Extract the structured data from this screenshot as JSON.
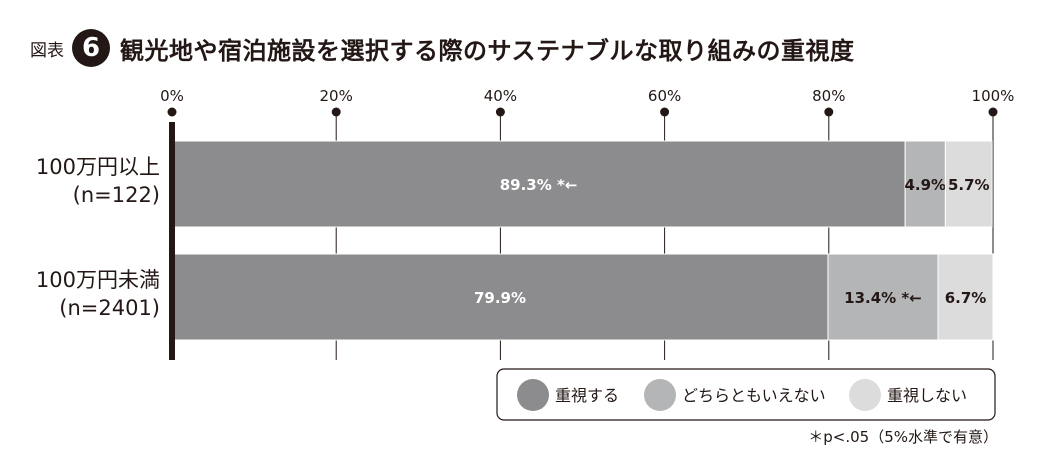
{
  "header": {
    "figure_label": "図表",
    "figure_number": "6",
    "title": "観光地や宿泊施設を選択する際のサステナブルな取り組みの重視度"
  },
  "chart_data": {
    "type": "bar",
    "orientation": "horizontal",
    "stacked": true,
    "xlim": [
      0,
      100
    ],
    "x_ticks": [
      "0%",
      "20%",
      "40%",
      "60%",
      "80%",
      "100%"
    ],
    "categories": [
      [
        "100万円以上",
        "(n=122)"
      ],
      [
        "100万円未満",
        "(n=2401)"
      ]
    ],
    "series": [
      {
        "name": "重視する",
        "color": "#8c8c8e",
        "values": [
          89.3,
          79.9
        ],
        "labels": [
          "89.3% *←",
          "79.9%"
        ]
      },
      {
        "name": "どちらともいえない",
        "color": "#b4b5b6",
        "values": [
          4.9,
          13.4
        ],
        "labels": [
          "4.9%",
          "13.4% *←"
        ]
      },
      {
        "name": "重視しない",
        "color": "#dcdcdd",
        "values": [
          5.7,
          6.7
        ],
        "labels": [
          "5.7%",
          "6.7%"
        ]
      }
    ],
    "grid": true,
    "legend": "bottom-right"
  },
  "footnote": "＊p<.05（5%水準で有意）"
}
